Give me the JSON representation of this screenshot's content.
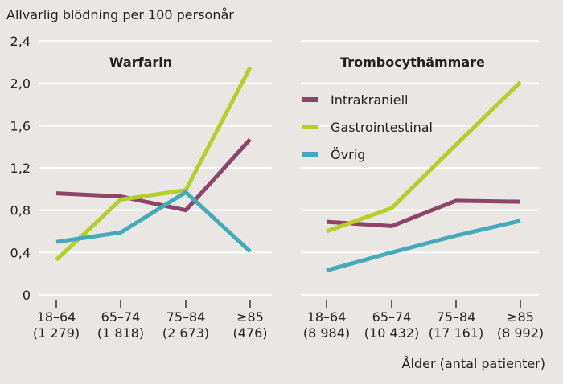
{
  "chart_data": [
    {
      "type": "line",
      "title": "Warfarin",
      "categories": [
        "18–64",
        "65–74",
        "75–84",
        "≥85"
      ],
      "counts": [
        "(1 279)",
        "(1 818)",
        "(2 673)",
        "(476)"
      ],
      "series": [
        {
          "name": "Intrakraniell",
          "values": [
            0.96,
            0.93,
            0.8,
            1.47
          ]
        },
        {
          "name": "Gastrointestinal",
          "values": [
            0.33,
            0.9,
            0.99,
            2.15
          ]
        },
        {
          "name": "Övrig",
          "values": [
            0.5,
            0.59,
            0.97,
            0.41
          ]
        }
      ]
    },
    {
      "type": "line",
      "title": "Trombocythämmare",
      "categories": [
        "18–64",
        "65–74",
        "75–84",
        "≥85"
      ],
      "counts": [
        "(8 984)",
        "(10 432)",
        "(17 161)",
        "(8 992)"
      ],
      "series": [
        {
          "name": "Intrakraniell",
          "values": [
            0.69,
            0.65,
            0.89,
            0.88
          ]
        },
        {
          "name": "Gastrointestinal",
          "values": [
            0.6,
            0.82,
            1.42,
            2.01
          ]
        },
        {
          "name": "Övrig",
          "values": [
            0.23,
            0.4,
            0.56,
            0.7
          ]
        }
      ]
    }
  ],
  "ylabel": "Allvarlig blödning per 100 personår",
  "xlabel": "Ålder (antal patienter)",
  "yticks": [
    "0",
    "0,4",
    "0,8",
    "1,2",
    "1,6",
    "2,0",
    "2,4"
  ],
  "ylim": [
    0,
    2.4
  ],
  "legend": {
    "placement": "right-panel top-left",
    "items": [
      "Intrakraniell",
      "Gastrointestinal",
      "Övrig"
    ]
  },
  "colors": [
    "#8e4468",
    "#b5cf2a",
    "#45aab8"
  ]
}
